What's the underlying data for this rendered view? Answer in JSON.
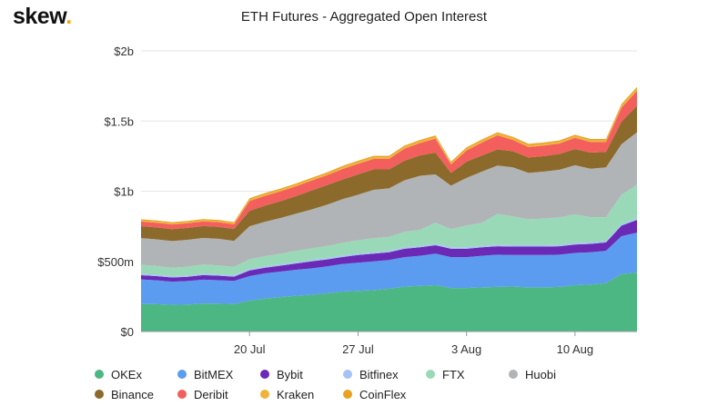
{
  "logo": {
    "text": "skew",
    "dot": "."
  },
  "chart_data": {
    "type": "area",
    "stacked": true,
    "title": "ETH Futures - Aggregated Open Interest",
    "xlabel": "",
    "ylabel": "",
    "ylim": [
      0,
      2000000000
    ],
    "y_ticks": [
      "$0",
      "$500m",
      "$1b",
      "$1.5b",
      "$2b"
    ],
    "x_ticks": [
      "20 Jul",
      "27 Jul",
      "3 Aug",
      "10 Aug"
    ],
    "grid": true,
    "legend_position": "bottom",
    "x": [
      "13 Jul",
      "14 Jul",
      "15 Jul",
      "16 Jul",
      "17 Jul",
      "18 Jul",
      "19 Jul",
      "20 Jul",
      "21 Jul",
      "22 Jul",
      "23 Jul",
      "24 Jul",
      "25 Jul",
      "26 Jul",
      "27 Jul",
      "28 Jul",
      "29 Jul",
      "30 Jul",
      "31 Jul",
      "1 Aug",
      "2 Aug",
      "3 Aug",
      "4 Aug",
      "5 Aug",
      "6 Aug",
      "7 Aug",
      "8 Aug",
      "9 Aug",
      "10 Aug",
      "11 Aug",
      "12 Aug",
      "13 Aug",
      "14 Aug"
    ],
    "series": [
      {
        "name": "OKEx",
        "color": "#4cb782",
        "values": [
          196,
          195,
          190,
          192,
          200,
          198,
          196,
          220,
          235,
          245,
          255,
          262,
          272,
          285,
          290,
          295,
          305,
          320,
          325,
          330,
          310,
          310,
          315,
          318,
          320,
          315,
          315,
          318,
          330,
          335,
          345,
          410,
          420
        ]
      },
      {
        "name": "BitMEX",
        "color": "#5b9cf0",
        "values": [
          175,
          170,
          165,
          168,
          170,
          168,
          165,
          175,
          180,
          182,
          185,
          188,
          192,
          196,
          200,
          205,
          205,
          210,
          215,
          225,
          220,
          220,
          225,
          230,
          225,
          230,
          230,
          230,
          230,
          230,
          230,
          270,
          285
        ]
      },
      {
        "name": "Bybit",
        "color": "#6a2ab5",
        "values": [
          30,
          30,
          30,
          30,
          32,
          32,
          30,
          40,
          40,
          42,
          45,
          50,
          50,
          50,
          55,
          55,
          55,
          60,
          60,
          60,
          60,
          60,
          60,
          60,
          60,
          60,
          60,
          60,
          60,
          60,
          60,
          75,
          90
        ]
      },
      {
        "name": "Bitfinex",
        "color": "#a6c3f5",
        "values": [
          10,
          10,
          10,
          10,
          10,
          10,
          10,
          10,
          10,
          10,
          10,
          10,
          10,
          10,
          10,
          10,
          10,
          10,
          10,
          10,
          10,
          10,
          10,
          10,
          10,
          10,
          10,
          10,
          10,
          10,
          10,
          10,
          10
        ]
      },
      {
        "name": "FTX",
        "color": "#9ad9b8",
        "values": [
          65,
          62,
          60,
          62,
          65,
          63,
          60,
          70,
          72,
          75,
          80,
          82,
          85,
          90,
          95,
          100,
          100,
          110,
          115,
          150,
          130,
          155,
          165,
          220,
          205,
          185,
          190,
          195,
          205,
          180,
          170,
          210,
          240
        ]
      },
      {
        "name": "Huobi",
        "color": "#b0b4b6",
        "values": [
          190,
          190,
          190,
          192,
          190,
          190,
          185,
          235,
          245,
          255,
          265,
          278,
          295,
          312,
          325,
          345,
          345,
          368,
          385,
          345,
          310,
          340,
          365,
          345,
          350,
          330,
          335,
          340,
          350,
          345,
          355,
          360,
          375
        ]
      },
      {
        "name": "Binance",
        "color": "#8b6a2c",
        "values": [
          85,
          85,
          85,
          85,
          85,
          85,
          85,
          110,
          115,
          120,
          125,
          135,
          140,
          140,
          145,
          145,
          135,
          140,
          145,
          155,
          90,
          115,
          115,
          115,
          115,
          110,
          110,
          112,
          115,
          115,
          110,
          160,
          190
        ]
      },
      {
        "name": "Deribit",
        "color": "#f25f5c",
        "values": [
          33,
          33,
          33,
          33,
          33,
          33,
          33,
          70,
          70,
          70,
          70,
          70,
          70,
          75,
          75,
          75,
          75,
          85,
          88,
          100,
          60,
          80,
          92,
          100,
          80,
          75,
          75,
          75,
          80,
          75,
          70,
          100,
          105
        ]
      },
      {
        "name": "Kraken",
        "color": "#f0b23a",
        "values": [
          8,
          8,
          8,
          8,
          8,
          8,
          8,
          10,
          10,
          10,
          10,
          10,
          10,
          12,
          12,
          12,
          12,
          12,
          12,
          12,
          10,
          12,
          12,
          12,
          12,
          12,
          12,
          12,
          12,
          12,
          12,
          14,
          15
        ]
      },
      {
        "name": "CoinFlex",
        "color": "#e8a21f",
        "values": [
          8,
          8,
          8,
          8,
          8,
          8,
          8,
          10,
          10,
          10,
          10,
          10,
          10,
          10,
          10,
          10,
          10,
          10,
          10,
          10,
          10,
          10,
          10,
          10,
          10,
          10,
          10,
          10,
          10,
          10,
          10,
          12,
          13
        ]
      }
    ]
  }
}
